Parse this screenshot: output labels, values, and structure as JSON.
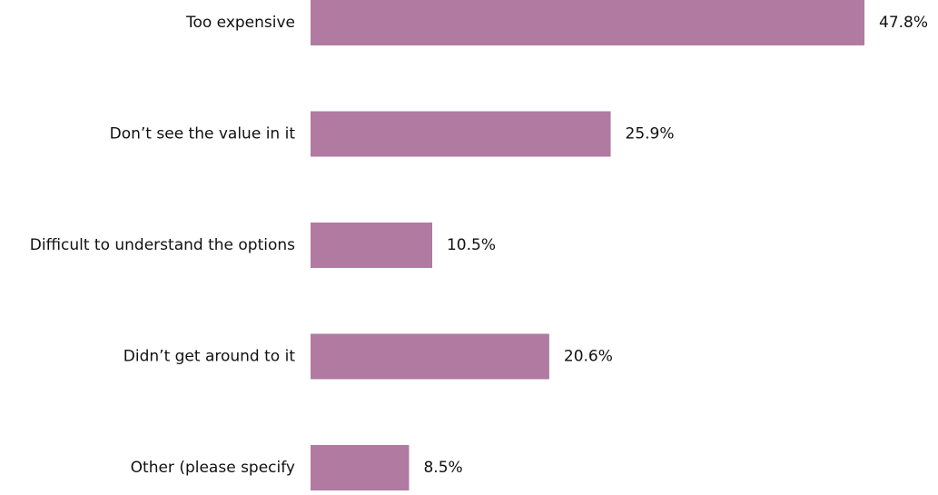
{
  "chart_data": {
    "type": "bar",
    "orientation": "horizontal",
    "categories": [
      "Too expensive",
      "Don’t see the value in it",
      "Difficult to understand the options",
      "Didn’t get around to it",
      "Other (please specify"
    ],
    "values": [
      47.8,
      25.9,
      10.5,
      20.6,
      8.5
    ],
    "value_labels": [
      "47.8%",
      "25.9%",
      "10.5%",
      "20.6%",
      "8.5%"
    ],
    "xlim": [
      0,
      47.8
    ],
    "grid": false,
    "bar_color": "#b07aa1",
    "label_color": "#111111"
  }
}
